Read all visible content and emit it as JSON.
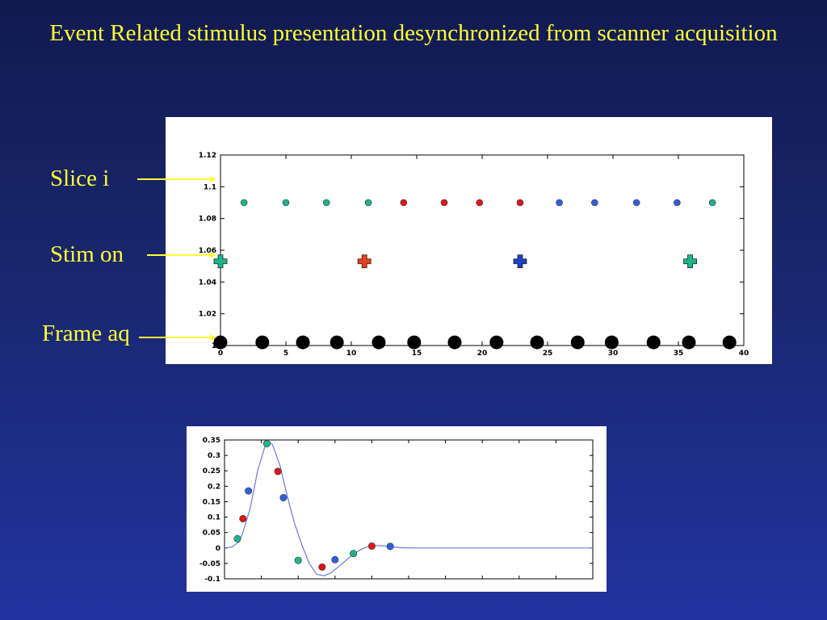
{
  "slide": {
    "title": "Event Related stimulus presentation desynchronized from scanner acquisition",
    "labels": {
      "slice": "Slice i",
      "stim": "Stim on",
      "frame": "Frame aq"
    },
    "colors": {
      "background": "#19276e",
      "text": "#ffff33",
      "arrow": "#ffff33",
      "green": "#1bb58a",
      "red": "#e01515",
      "blue": "#2f5fe0",
      "black": "#000000",
      "curve": "#6a7bd8"
    }
  },
  "chart_data": [
    {
      "type": "scatter",
      "xlim": [
        0,
        40
      ],
      "ylim": [
        1,
        1.12
      ],
      "xticks": [
        0,
        5,
        10,
        15,
        20,
        25,
        30,
        35,
        40
      ],
      "yticks": [
        1,
        1.02,
        1.04,
        1.06,
        1.08,
        1.1,
        1.12
      ],
      "xtick_labels": [
        "0",
        "5",
        "10",
        "15",
        "20",
        "25",
        "30",
        "35",
        "40"
      ],
      "ytick_labels": [
        "1",
        "1.02",
        "1.04",
        "1.06",
        "1.08",
        "1.1",
        "1.12"
      ],
      "grid": false,
      "series": [
        {
          "marker": "circle",
          "color": "#1bb58a",
          "points": [
            [
              1.8,
              1.09
            ],
            [
              5.0,
              1.09
            ],
            [
              8.1,
              1.09
            ],
            [
              11.3,
              1.09
            ],
            [
              37.6,
              1.09
            ]
          ]
        },
        {
          "marker": "circle",
          "color": "#e01515",
          "points": [
            [
              14.0,
              1.09
            ],
            [
              17.1,
              1.09
            ],
            [
              19.8,
              1.09
            ],
            [
              22.9,
              1.09
            ]
          ]
        },
        {
          "marker": "circle",
          "color": "#2f5fe0",
          "points": [
            [
              25.9,
              1.09
            ],
            [
              28.6,
              1.09
            ],
            [
              31.8,
              1.09
            ],
            [
              34.9,
              1.09
            ]
          ]
        },
        {
          "marker": "plus",
          "points": [
            [
              0,
              1.053,
              "#1bb58a"
            ],
            [
              11,
              1.053,
              "#e8401a"
            ],
            [
              22.9,
              1.053,
              "#1d3fc8"
            ],
            [
              35.9,
              1.053,
              "#1bb58a"
            ]
          ]
        },
        {
          "marker": "big-dot",
          "color": "#000000",
          "points": [
            [
              0,
              1.002
            ],
            [
              3.2,
              1.002
            ],
            [
              6.3,
              1.002
            ],
            [
              8.9,
              1.002
            ],
            [
              12.1,
              1.002
            ],
            [
              14.8,
              1.002
            ],
            [
              17.9,
              1.002
            ],
            [
              21.1,
              1.002
            ],
            [
              24.2,
              1.002
            ],
            [
              27.3,
              1.002
            ],
            [
              29.9,
              1.002
            ],
            [
              33.1,
              1.002
            ],
            [
              35.8,
              1.002
            ],
            [
              38.9,
              1.002
            ]
          ]
        }
      ]
    },
    {
      "type": "line",
      "xlim": [
        0,
        100
      ],
      "ylim": [
        -0.1,
        0.35
      ],
      "yticks": [
        -0.1,
        -0.05,
        0,
        0.05,
        0.1,
        0.15,
        0.2,
        0.25,
        0.3,
        0.35
      ],
      "ytick_labels": [
        "-0.1",
        "-0.05",
        "0",
        "0.05",
        "0.1",
        "0.15",
        "0.2",
        "0.25",
        "0.3",
        "0.35"
      ],
      "grid": false,
      "curve": [
        [
          0,
          0
        ],
        [
          2,
          0.003
        ],
        [
          4,
          0.02
        ],
        [
          5,
          0.05
        ],
        [
          7,
          0.13
        ],
        [
          9,
          0.25
        ],
        [
          11,
          0.33
        ],
        [
          12,
          0.345
        ],
        [
          13,
          0.335
        ],
        [
          15,
          0.27
        ],
        [
          17,
          0.17
        ],
        [
          19,
          0.08
        ],
        [
          21,
          0.01
        ],
        [
          23,
          -0.05
        ],
        [
          25,
          -0.085
        ],
        [
          27,
          -0.09
        ],
        [
          29,
          -0.08
        ],
        [
          31,
          -0.06
        ],
        [
          33,
          -0.04
        ],
        [
          35,
          -0.02
        ],
        [
          37,
          -0.005
        ],
        [
          39,
          0.005
        ],
        [
          41,
          0.008
        ],
        [
          43,
          0.007
        ],
        [
          45,
          0.004
        ],
        [
          48,
          0.001
        ],
        [
          52,
          0
        ],
        [
          100,
          0
        ]
      ],
      "series": [
        {
          "color": "#1bb58a",
          "points": [
            [
              3.5,
              0.03
            ],
            [
              11.5,
              0.338
            ],
            [
              20,
              -0.04
            ],
            [
              35,
              -0.018
            ]
          ]
        },
        {
          "color": "#e01515",
          "points": [
            [
              5,
              0.095
            ],
            [
              14.5,
              0.248
            ],
            [
              26.5,
              -0.062
            ],
            [
              40,
              0.006
            ]
          ]
        },
        {
          "color": "#2f5fe0",
          "points": [
            [
              6.5,
              0.185
            ],
            [
              16,
              0.163
            ],
            [
              30,
              -0.038
            ],
            [
              45,
              0.005
            ]
          ]
        }
      ]
    }
  ]
}
